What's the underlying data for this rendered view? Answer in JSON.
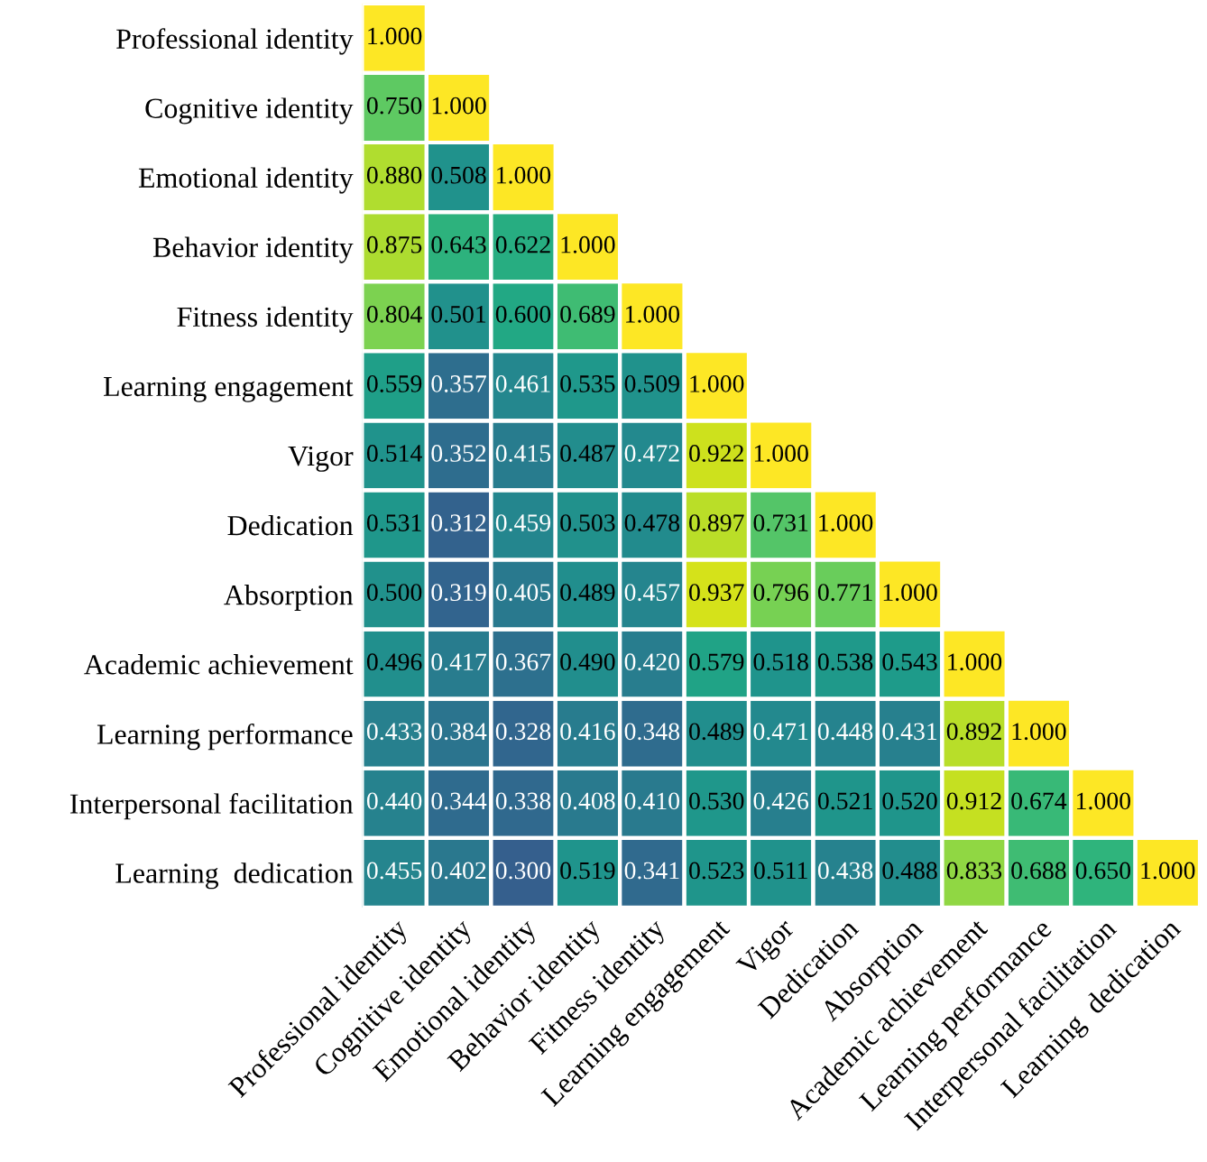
{
  "chart_data": {
    "type": "heatmap",
    "categories": [
      "Professional identity",
      "Cognitive identity",
      "Emotional identity",
      "Behavior identity",
      "Fitness identity",
      "Learning engagement",
      "Vigor",
      "Dedication",
      "Absorption",
      "Academic achievement",
      "Learning performance",
      "Interpersonal facilitation",
      "Learning  dedication"
    ],
    "y_categories": [
      "Professional identity",
      "Cognitive identity",
      "Emotional identity",
      "Behavior identity",
      "Fitness identity",
      "Learning engagement",
      "Vigor",
      "Dedication",
      "Absorption",
      "Academic achievement",
      "Learning performance",
      "Interpersonal facilitation",
      "Learning  dedication"
    ],
    "cells": [
      [
        1.0,
        null,
        null,
        null,
        null,
        null,
        null,
        null,
        null,
        null,
        null,
        null,
        null
      ],
      [
        0.75,
        1.0,
        null,
        null,
        null,
        null,
        null,
        null,
        null,
        null,
        null,
        null,
        null
      ],
      [
        0.88,
        0.508,
        1.0,
        null,
        null,
        null,
        null,
        null,
        null,
        null,
        null,
        null,
        null
      ],
      [
        0.875,
        0.643,
        0.622,
        1.0,
        null,
        null,
        null,
        null,
        null,
        null,
        null,
        null,
        null
      ],
      [
        0.804,
        0.501,
        0.6,
        0.689,
        1.0,
        null,
        null,
        null,
        null,
        null,
        null,
        null,
        null
      ],
      [
        0.559,
        0.357,
        0.461,
        0.535,
        0.509,
        1.0,
        null,
        null,
        null,
        null,
        null,
        null,
        null
      ],
      [
        0.514,
        0.352,
        0.415,
        0.487,
        0.472,
        0.922,
        1.0,
        null,
        null,
        null,
        null,
        null,
        null
      ],
      [
        0.531,
        0.312,
        0.459,
        0.503,
        0.478,
        0.897,
        0.731,
        1.0,
        null,
        null,
        null,
        null,
        null
      ],
      [
        0.5,
        0.319,
        0.405,
        0.489,
        0.457,
        0.937,
        0.796,
        0.771,
        1.0,
        null,
        null,
        null,
        null
      ],
      [
        0.496,
        0.417,
        0.367,
        0.49,
        0.42,
        0.579,
        0.518,
        0.538,
        0.543,
        1.0,
        null,
        null,
        null
      ],
      [
        0.433,
        0.384,
        0.328,
        0.416,
        0.348,
        0.489,
        0.471,
        0.448,
        0.431,
        0.892,
        1.0,
        null,
        null
      ],
      [
        0.44,
        0.344,
        0.338,
        0.408,
        0.41,
        0.53,
        0.426,
        0.521,
        0.52,
        0.912,
        0.674,
        1.0,
        null
      ],
      [
        0.455,
        0.402,
        0.3,
        0.519,
        0.341,
        0.523,
        0.511,
        0.438,
        0.488,
        0.833,
        0.688,
        0.65,
        1.0
      ]
    ],
    "cell_labels": [
      [
        "1.000",
        null,
        null,
        null,
        null,
        null,
        null,
        null,
        null,
        null,
        null,
        null,
        null
      ],
      [
        "0.750",
        "1.000",
        null,
        null,
        null,
        null,
        null,
        null,
        null,
        null,
        null,
        null,
        null
      ],
      [
        "0.880",
        "0.508",
        "1.000",
        null,
        null,
        null,
        null,
        null,
        null,
        null,
        null,
        null,
        null
      ],
      [
        "0.875",
        "0.643",
        "0.622",
        "1.000",
        null,
        null,
        null,
        null,
        null,
        null,
        null,
        null,
        null
      ],
      [
        "0.804",
        "0.501",
        "0.600",
        "0.689",
        "1.000",
        null,
        null,
        null,
        null,
        null,
        null,
        null,
        null
      ],
      [
        "0.559",
        "0.357",
        "0.461",
        "0.535",
        "0.509",
        "1.000",
        null,
        null,
        null,
        null,
        null,
        null,
        null
      ],
      [
        "0.514",
        "0.352",
        "0.415",
        "0.487",
        "0.472",
        "0.922",
        "1.000",
        null,
        null,
        null,
        null,
        null,
        null
      ],
      [
        "0.531",
        "0.312",
        "0.459",
        "0.503",
        "0.478",
        "0.897",
        "0.731",
        "1.000",
        null,
        null,
        null,
        null,
        null
      ],
      [
        "0.500",
        "0.319",
        "0.405",
        "0.489",
        "0.457",
        "0.937",
        "0.796",
        "0.771",
        "1.000",
        null,
        null,
        null,
        null
      ],
      [
        "0.496",
        "0.417",
        "0.367",
        "0.490",
        "0.420",
        "0.579",
        "0.518",
        "0.538",
        "0.543",
        "1.000",
        null,
        null,
        null
      ],
      [
        "0.433",
        "0.384",
        "0.328",
        "0.416",
        "0.348",
        "0.489",
        "0.471",
        "0.448",
        "0.431",
        "0.892",
        "1.000",
        null,
        null
      ],
      [
        "0.440",
        "0.344",
        "0.338",
        "0.408",
        "0.410",
        "0.530",
        "0.426",
        "0.521",
        "0.520",
        "0.912",
        "0.674",
        "1.000",
        null
      ],
      [
        "0.455",
        "0.402",
        "0.300",
        "0.519",
        "0.341",
        "0.523",
        "0.511",
        "0.438",
        "0.488",
        "0.833",
        "0.688",
        "0.650",
        "1.000"
      ]
    ],
    "data_labels": true
  }
}
